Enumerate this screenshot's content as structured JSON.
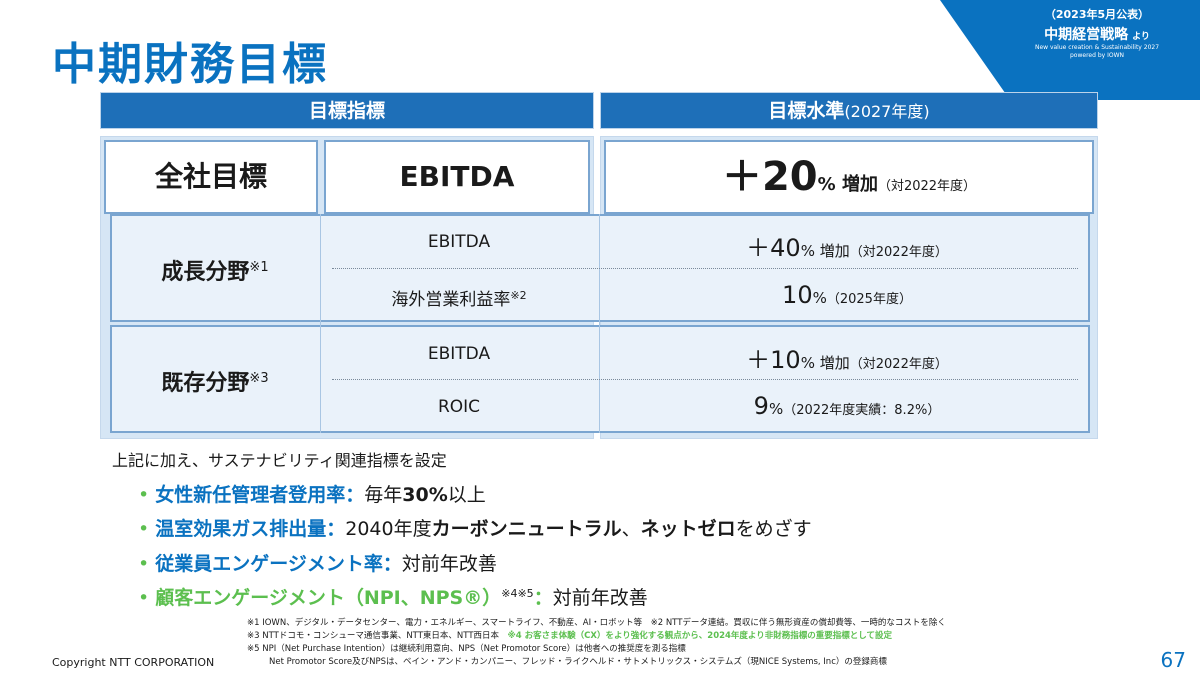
{
  "title": "中期財務目標",
  "badge": {
    "line1": "（2023年5月公表）",
    "line2": "中期経営戦略",
    "line2_suffix": "より",
    "line3": "New value creation & Sustainability 2027",
    "line4": "powered by IOWN"
  },
  "table": {
    "header_left": "目標指標",
    "header_right": "目標水準",
    "header_right_sub": "(2027年度)",
    "company": {
      "label": "全社目標",
      "metric": "EBITDA",
      "value_sign": "＋",
      "value_num": "20",
      "value_pct": "%",
      "value_word": " 増加",
      "value_note": "（対2022年度）"
    },
    "growth": {
      "label": "成長分野",
      "note": "※1",
      "rows": [
        {
          "metric": "EBITDA",
          "metric_note": "",
          "num": "＋40",
          "pct": "%",
          "word": " 増加",
          "note": "（対2022年度）"
        },
        {
          "metric": "海外営業利益率",
          "metric_note": "※2",
          "num": "10",
          "pct": "%",
          "word": "",
          "note": "（2025年度）"
        }
      ]
    },
    "existing": {
      "label": "既存分野",
      "note": "※3",
      "rows": [
        {
          "metric": "EBITDA",
          "metric_note": "",
          "num": "＋10",
          "pct": "%",
          "word": " 増加",
          "note": "（対2022年度）"
        },
        {
          "metric": "ROIC",
          "metric_note": "",
          "num": "9",
          "pct": "%",
          "word": "",
          "note": "（2022年度実績：8.2%）"
        }
      ]
    }
  },
  "additional_text": "上記に加え、サステナビリティ関連指標を設定",
  "bullets": {
    "b1_label": "女性新任管理者登用率：",
    "b1_pre": "毎年",
    "b1_bold": "30%",
    "b1_post": "以上",
    "b2_label": "温室効果ガス排出量：",
    "b2_pre": "2040年度",
    "b2_bold1": "カーボンニュートラル",
    "b2_mid": "、",
    "b2_bold2": "ネットゼロ",
    "b2_post": "をめざす",
    "b3_label": "従業員エンゲージメント率：",
    "b3_text": "対前年改善",
    "b4_label": "顧客エンゲージメント（NPI、NPS®）",
    "b4_note": "※4※5",
    "b4_colon": "：",
    "b4_text": "対前年改善"
  },
  "footnotes": {
    "fn1": "※1 IOWN、デジタル・データセンター、電力・エネルギー、スマートライフ、不動産、AI・ロボット等　※2 NTTデータ連結。買収に伴う無形資産の償却費等、一時的なコストを除く",
    "fn2_a": "※3 NTTドコモ・コンシューマ通信事業、NTT東日本、NTT西日本　",
    "fn2_b": "※4 お客さま体験（CX）をより強化する観点から、2024年度より非財務指標の重要指標として設定",
    "fn3": "※5 NPI（Net Purchase Intention）は継続利用意向、NPS（Net Promotor Score）は他者への推奨度を測る指標",
    "fn4": "Net Promotor Score及びNPSは、ベイン・アンド・カンパニー、フレッド・ライクヘルド・サトメトリックス・システムズ（現NICE Systems, Inc）の登録商標"
  },
  "copyright": "Copyright NTT CORPORATION",
  "page_number": "67",
  "colors": {
    "brand_blue": "#0a72c0",
    "header_blue": "#1e6fb8",
    "green": "#5cbf4f"
  }
}
